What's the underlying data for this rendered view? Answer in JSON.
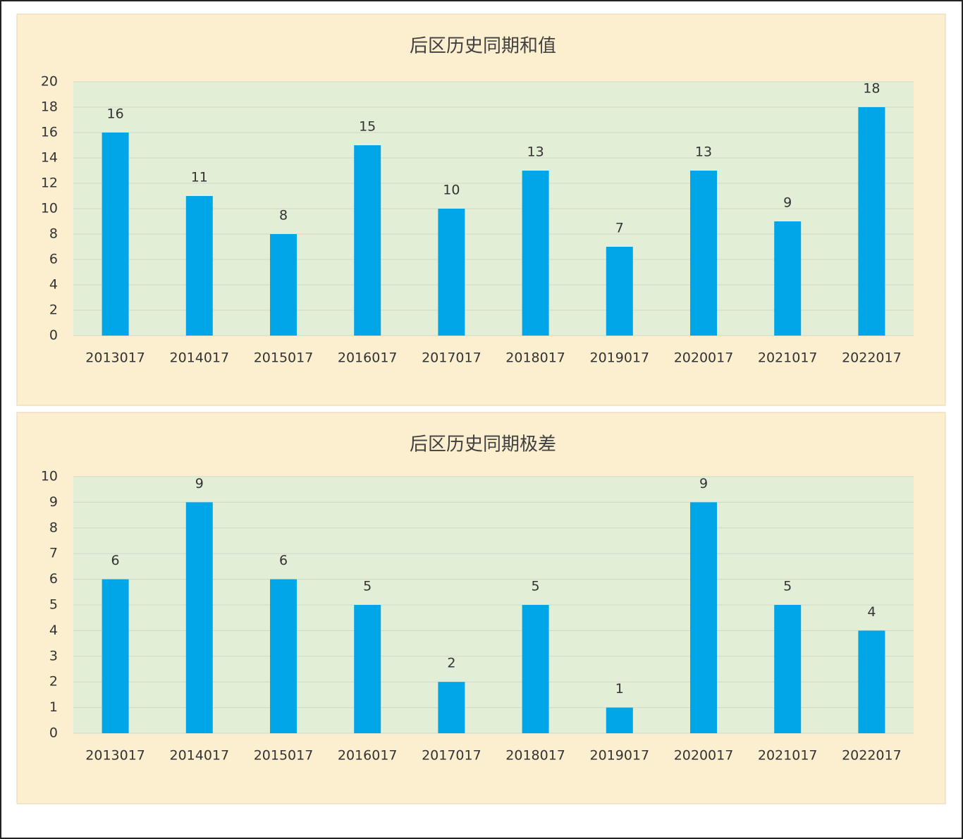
{
  "chart_data": [
    {
      "type": "bar",
      "title": "后区历史同期和值",
      "categories": [
        "2013017",
        "2014017",
        "2015017",
        "2016017",
        "2017017",
        "2018017",
        "2019017",
        "2020017",
        "2021017",
        "2022017"
      ],
      "values": [
        16,
        11,
        8,
        15,
        10,
        13,
        7,
        13,
        9,
        18
      ],
      "color": "#00a6e8",
      "ylim": [
        0,
        20
      ],
      "yticks": [
        0,
        2,
        4,
        6,
        8,
        10,
        12,
        14,
        16,
        18,
        20
      ],
      "grid": true
    },
    {
      "type": "bar",
      "title": "后区历史同期极差",
      "categories": [
        "2013017",
        "2014017",
        "2015017",
        "2016017",
        "2017017",
        "2018017",
        "2019017",
        "2020017",
        "2021017",
        "2022017"
      ],
      "values": [
        6,
        9,
        6,
        5,
        2,
        5,
        1,
        9,
        5,
        4
      ],
      "color": "#00a6e8",
      "ylim": [
        0,
        10
      ],
      "yticks": [
        0,
        1,
        2,
        3,
        4,
        5,
        6,
        7,
        8,
        9,
        10
      ],
      "grid": true
    }
  ]
}
